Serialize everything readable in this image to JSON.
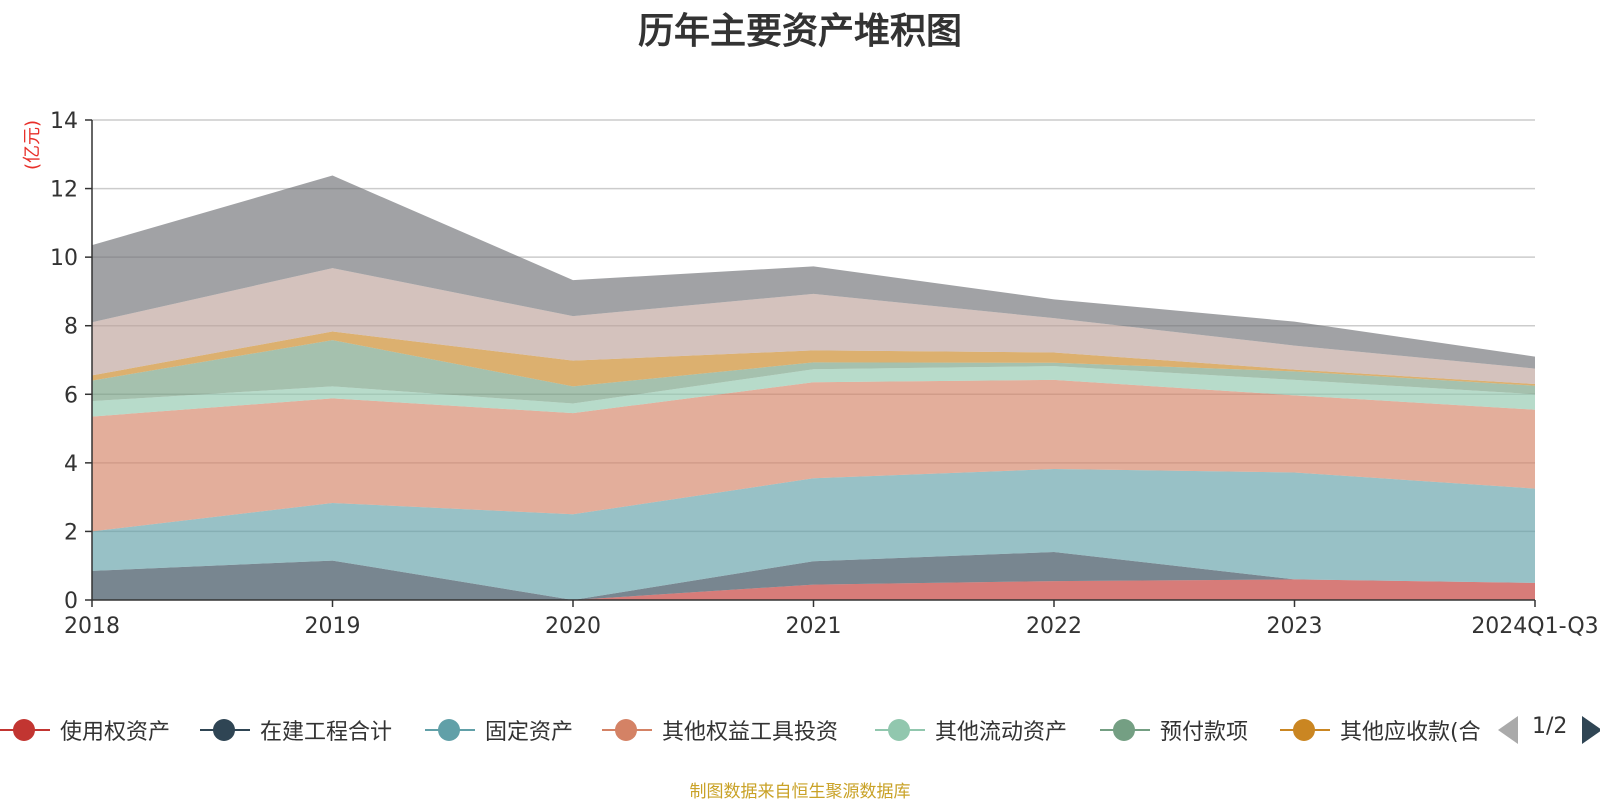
{
  "chart_data": {
    "type": "area",
    "stacked": true,
    "title": "历年主要资产堆积图",
    "unit_label": "(亿元)",
    "categories": [
      "2018",
      "2019",
      "2020",
      "2021",
      "2022",
      "2023",
      "2024Q1-Q3"
    ],
    "ylim": [
      0,
      14
    ],
    "yticks": [
      0,
      2,
      4,
      6,
      8,
      10,
      12,
      14
    ],
    "grid": true,
    "legend_position": "bottom",
    "series": [
      {
        "name": "使用权资产",
        "color": "#c23531",
        "values": [
          0,
          0,
          0,
          0.45,
          0.55,
          0.6,
          0.5
        ]
      },
      {
        "name": "在建工程合计",
        "color": "#2f4554",
        "values": [
          0.85,
          1.15,
          0,
          0.68,
          0.85,
          0,
          0
        ]
      },
      {
        "name": "固定资产",
        "color": "#61a0a8",
        "values": [
          1.15,
          1.68,
          2.5,
          2.42,
          2.42,
          3.12,
          2.75
        ]
      },
      {
        "name": "其他权益工具投资",
        "color": "#d48265",
        "values": [
          3.35,
          3.05,
          2.95,
          2.8,
          2.6,
          2.25,
          2.3
        ]
      },
      {
        "name": "其他流动资产",
        "color": "#91c7ae",
        "values": [
          0.45,
          0.35,
          0.28,
          0.38,
          0.4,
          0.45,
          0.45
        ]
      },
      {
        "name": "预付款项",
        "color": "#749f83",
        "values": [
          0.6,
          1.35,
          0.5,
          0.2,
          0.1,
          0.25,
          0.25
        ]
      },
      {
        "name": "其他应收款(合计)",
        "color": "#ca8622",
        "values": [
          0.15,
          0.25,
          0.75,
          0.35,
          0.3,
          0.05,
          0.05
        ]
      },
      {
        "name": "",
        "color": "#bda29a",
        "values": [
          1.55,
          1.85,
          1.3,
          1.65,
          1.0,
          0.7,
          0.45
        ]
      },
      {
        "name": "",
        "color": "#6e7074",
        "values": [
          2.25,
          2.7,
          1.05,
          0.8,
          0.55,
          0.7,
          0.35
        ]
      }
    ]
  },
  "legend": {
    "items": [
      "使用权资产",
      "在建工程合计",
      "固定资产",
      "其他权益工具投资",
      "其他流动资产",
      "预付款项",
      "其他应收款(合"
    ],
    "page_indicator": "1/2"
  },
  "footer": {
    "source_note": "制图数据来自恒生聚源数据库"
  }
}
